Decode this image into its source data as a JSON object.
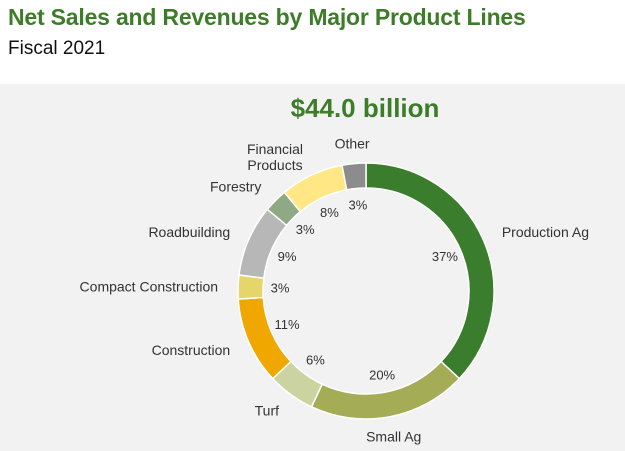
{
  "header": {
    "title": "Net Sales and Revenues by Major Product Lines",
    "subtitle": "Fiscal 2021"
  },
  "chart_data": {
    "type": "pie",
    "donut": true,
    "total_label": "$44.0 billion",
    "slices": [
      {
        "label": "Production Ag",
        "value": 37,
        "value_label": "37%",
        "color": "#3a7d2c"
      },
      {
        "label": "Small Ag",
        "value": 20,
        "value_label": "20%",
        "color": "#a4ad56"
      },
      {
        "label": "Turf",
        "value": 6,
        "value_label": "6%",
        "color": "#cbd3a0"
      },
      {
        "label": "Construction",
        "value": 11,
        "value_label": "11%",
        "color": "#f0a800"
      },
      {
        "label": "Compact Construction",
        "value": 3,
        "value_label": "3%",
        "color": "#e6d56a"
      },
      {
        "label": "Roadbuilding",
        "value": 9,
        "value_label": "9%",
        "color": "#b7b7b7"
      },
      {
        "label": "Forestry",
        "value": 3,
        "value_label": "3%",
        "color": "#8fa985"
      },
      {
        "label": [
          "Financial",
          "Products"
        ],
        "value": 8,
        "value_label": "8%",
        "color": "#ffe785"
      },
      {
        "label": "Other",
        "value": 3,
        "value_label": "3%",
        "color": "#8c8c8c"
      }
    ]
  }
}
